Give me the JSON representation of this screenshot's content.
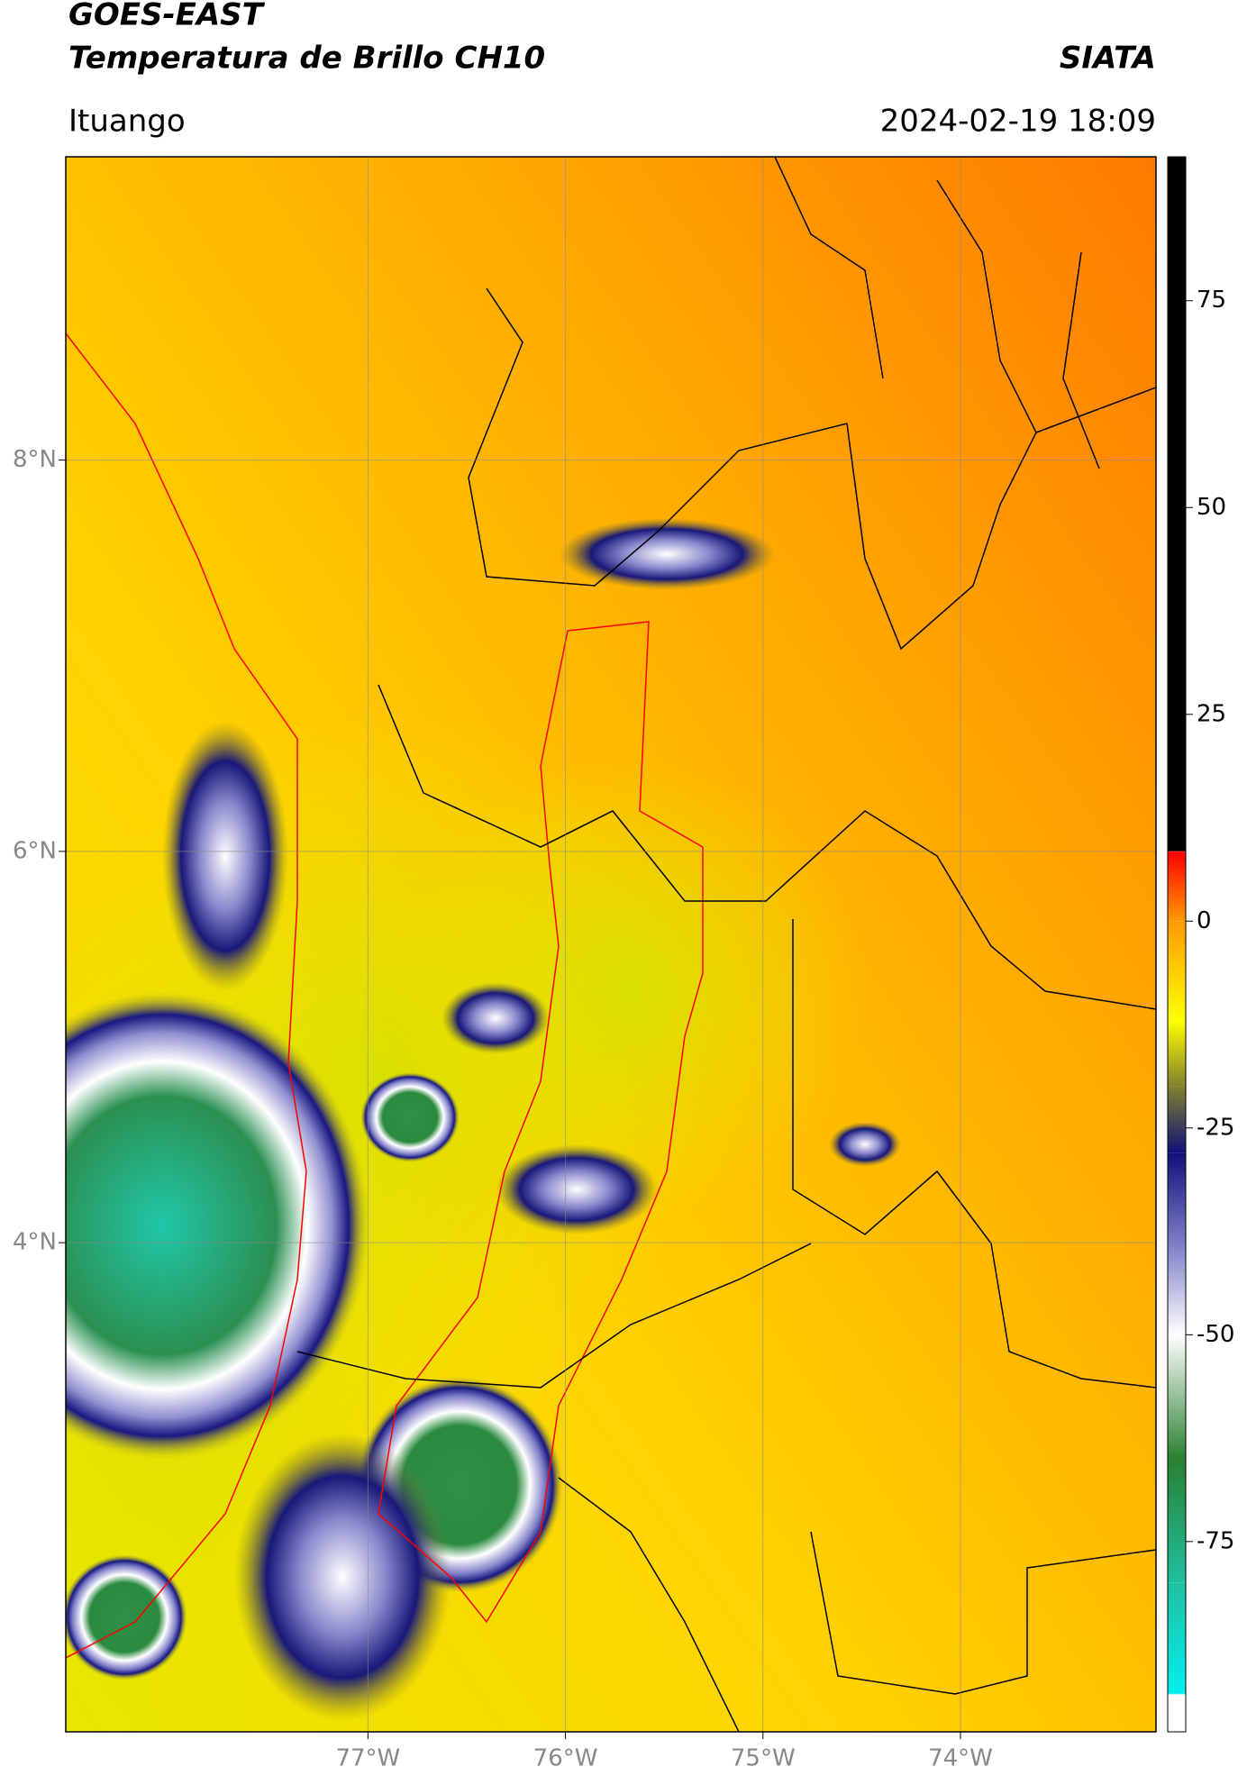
{
  "chart_data": {
    "type": "map",
    "title": "GOES-EAST",
    "subtitle": "Temperatura de Brillo CH10",
    "source": "SIATA",
    "location": "Ituango",
    "datetime": "2024-02-19 18:09",
    "xlim": [
      -78.53,
      -73.01
    ],
    "ylim": [
      1.5,
      9.55
    ],
    "xticks": [
      {
        "value": -77,
        "label": "77°W"
      },
      {
        "value": -76,
        "label": "76°W"
      },
      {
        "value": -75,
        "label": "75°W"
      },
      {
        "value": -74,
        "label": "74°W"
      }
    ],
    "yticks": [
      {
        "value": 8,
        "label": "8°N"
      },
      {
        "value": 6,
        "label": "6°N"
      },
      {
        "value": 4,
        "label": "4°N"
      }
    ],
    "grid": true,
    "colorbar": {
      "clim": [
        -98,
        92.4
      ],
      "ticks": [
        75,
        50,
        25,
        0,
        -25,
        -50,
        -75
      ],
      "stops": [
        {
          "value": -98,
          "color": "#ffffff"
        },
        {
          "value": -93.5,
          "color": "#ffffff"
        },
        {
          "value": -93.4,
          "color": "#00f0f0"
        },
        {
          "value": -80,
          "color": "#20c0a0"
        },
        {
          "value": -65,
          "color": "#2a8030"
        },
        {
          "value": -50,
          "color": "#ffffff"
        },
        {
          "value": -40,
          "color": "#8888cc"
        },
        {
          "value": -28,
          "color": "#101078"
        },
        {
          "value": -20,
          "color": "#808030"
        },
        {
          "value": -12,
          "color": "#ffff00"
        },
        {
          "value": 0,
          "color": "#ff9a00"
        },
        {
          "value": 8.4,
          "color": "#ff0000"
        },
        {
          "value": 8.5,
          "color": "#000000"
        },
        {
          "value": 92.4,
          "color": "#000000"
        }
      ]
    }
  }
}
